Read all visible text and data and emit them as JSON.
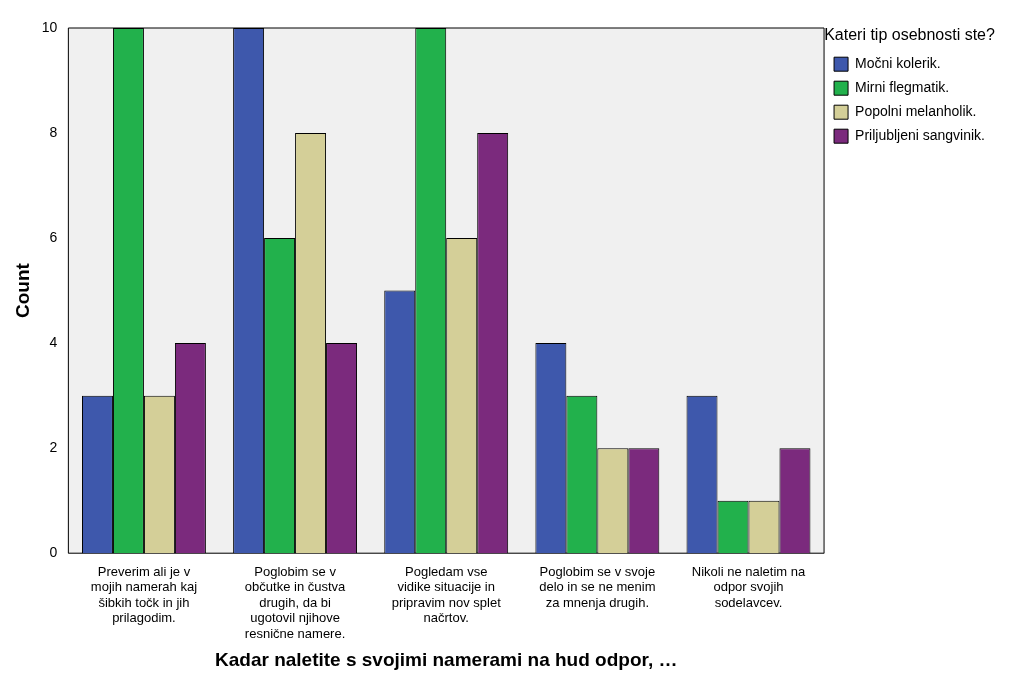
{
  "chart_data": {
    "type": "bar",
    "xlabel": "Kadar naletite s svojimi namerami na hud odpor, …",
    "ylabel": "Count",
    "legend_title": "Kateri tip osebnosti ste?",
    "legend": "right",
    "grid": false,
    "categories": [
      "Preverim ali je v mojih namerah kaj šibkih točk in jih prilagodim.",
      "Poglobim se v občutke in čustva drugih, da bi ugotovil njihove resnične namere.",
      "Pogledam vse vidike situacije in pripravim nov splet načrtov.",
      "Poglobim se v svoje delo in se ne menim za mnenja drugih.",
      "Nikoli ne naletim na odpor svojih sodelavcev."
    ],
    "series": [
      {
        "name": "Močni kolerik.",
        "color": "#3e58ac",
        "values": [
          3,
          10,
          5,
          4,
          3
        ]
      },
      {
        "name": "Mirni flegmatik.",
        "color": "#22b14c",
        "values": [
          10,
          6,
          10,
          3,
          1
        ]
      },
      {
        "name": "Popolni melanholik.",
        "color": "#d4cf98",
        "values": [
          3,
          8,
          6,
          2,
          1
        ]
      },
      {
        "name": "Priljubljeni sangvinik.",
        "color": "#7b2a7d",
        "values": [
          4,
          4,
          8,
          2,
          2
        ]
      }
    ],
    "ylim": [
      0,
      10
    ],
    "yticks": [
      0,
      2,
      4,
      6,
      8,
      10
    ]
  }
}
